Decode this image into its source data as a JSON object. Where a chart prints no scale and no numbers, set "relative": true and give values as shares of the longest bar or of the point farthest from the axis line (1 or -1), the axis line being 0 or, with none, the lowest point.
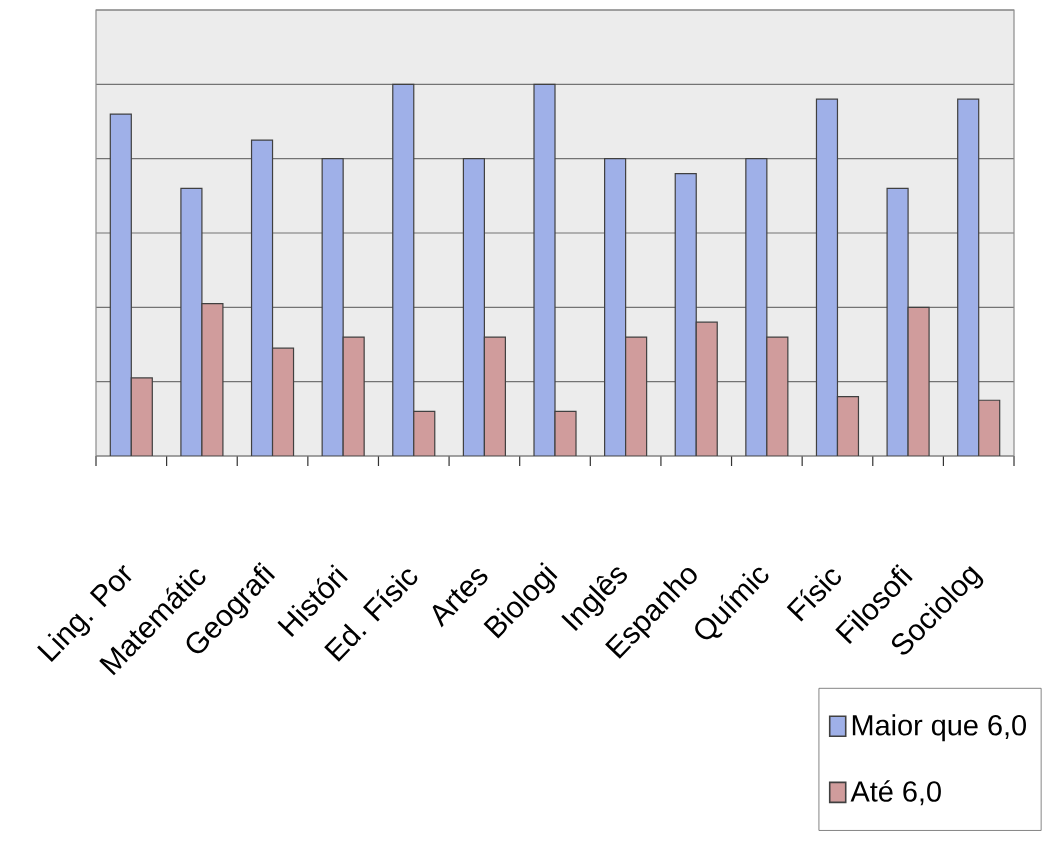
{
  "chart_data": {
    "type": "bar",
    "relative": true,
    "categories": [
      "Ling. Por",
      "Matemátic",
      "Geografi",
      "Históri",
      "Ed. Físic",
      "Artes",
      "Biologi",
      "Inglês",
      "Espanho",
      "Químic",
      "Físic",
      "Filosofi",
      "Sociolog"
    ],
    "series": [
      {
        "name": "Maior que 6,0",
        "color": "#9fb0e8",
        "values": [
          0.92,
          0.72,
          0.85,
          0.8,
          1,
          0.8,
          1,
          0.8,
          0.76,
          0.8,
          0.96,
          0.72,
          0.96
        ]
      },
      {
        "name": "Até 6,0",
        "color": "#d09c9c",
        "values": [
          0.21,
          0.41,
          0.29,
          0.32,
          0.12,
          0.32,
          0.12,
          0.32,
          0.36,
          0.32,
          0.16,
          0.4,
          0.15
        ]
      }
    ],
    "grid": "y",
    "legend": "bottom right"
  }
}
